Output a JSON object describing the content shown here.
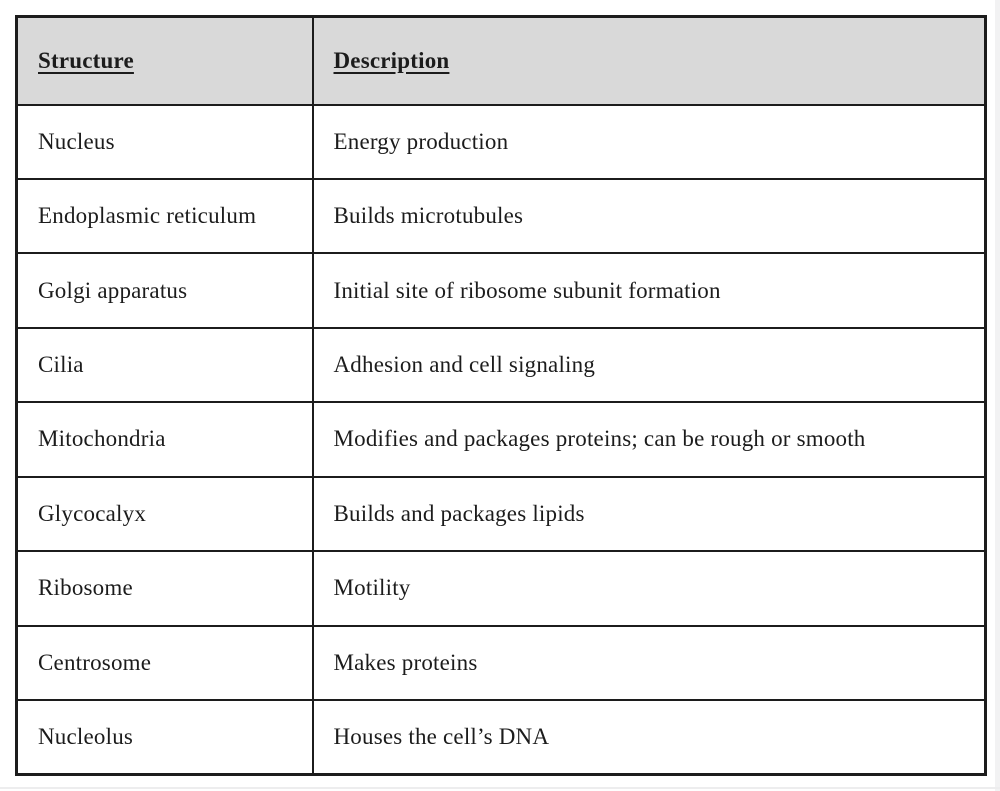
{
  "table": {
    "headers": [
      {
        "label": "Structure"
      },
      {
        "label": "Description"
      }
    ],
    "rows": [
      {
        "structure": "Nucleus",
        "description": "Energy production"
      },
      {
        "structure": "Endoplasmic reticulum",
        "description": "Builds microtubules"
      },
      {
        "structure": "Golgi apparatus",
        "description": "Initial site of ribosome subunit formation"
      },
      {
        "structure": "Cilia",
        "description": "Adhesion and cell signaling"
      },
      {
        "structure": "Mitochondria",
        "description": "Modifies and packages proteins; can be rough or smooth"
      },
      {
        "structure": "Glycocalyx",
        "description": "Builds and packages lipids"
      },
      {
        "structure": "Ribosome",
        "description": "Motility"
      },
      {
        "structure": "Centrosome",
        "description": "Makes proteins"
      },
      {
        "structure": "Nucleolus",
        "description": "Houses the cell’s DNA"
      }
    ]
  },
  "colors": {
    "header_bg": "#d9d9d9",
    "border": "#1c1c1c",
    "text": "#1c1c1c",
    "page_bg": "#ffffff"
  }
}
